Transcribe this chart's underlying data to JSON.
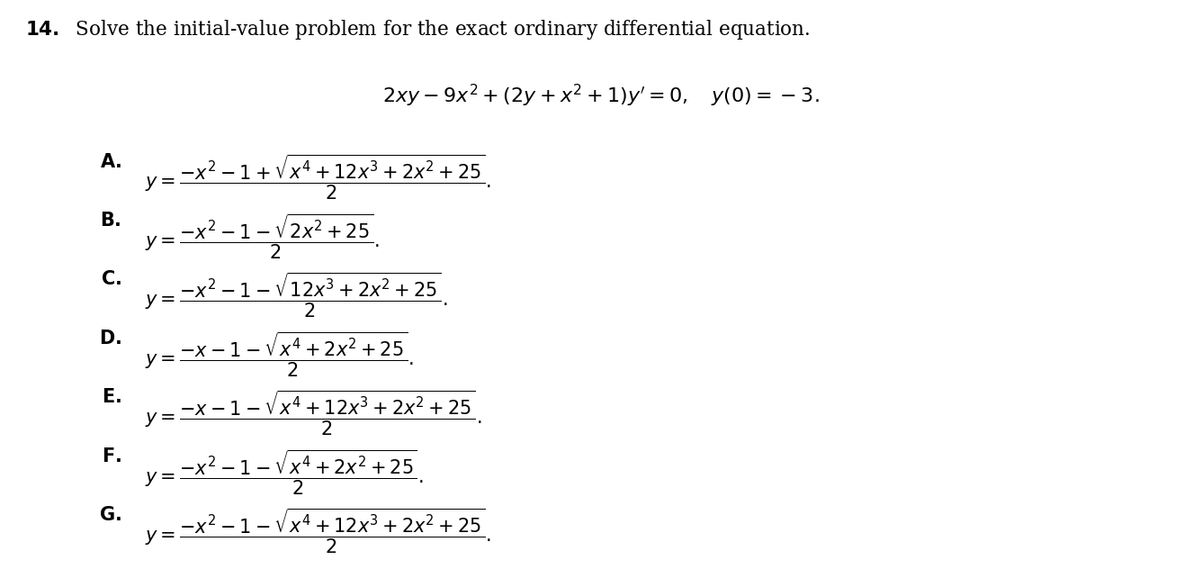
{
  "background_color": "#ffffff",
  "title_number": "14.",
  "title_text": "Solve the initial-value problem for the exact ordinary differential equation.",
  "equation": "2xy - 9x^{2} + (2y + x^{2} + 1)y' = 0, \\quad y(0) = -3.",
  "choices": [
    {
      "label": "A.",
      "formula": "y = \\dfrac{-x^2-1+\\sqrt{x^4+12x^3+2x^2+25}}{2}."
    },
    {
      "label": "B.",
      "formula": "y = \\dfrac{-x^2-1-\\sqrt{2x^2+25}}{2}."
    },
    {
      "label": "C.",
      "formula": "y = \\dfrac{-x^2-1-\\sqrt{12x^3+2x^2+25}}{2}."
    },
    {
      "label": "D.",
      "formula": "y = \\dfrac{-x-1-\\sqrt{x^4+2x^2+25}}{2}."
    },
    {
      "label": "E.",
      "formula": "y = \\dfrac{-x-1-\\sqrt{x^4+12x^3+2x^2+25}}{2}."
    },
    {
      "label": "F.",
      "formula": "y = \\dfrac{-x^2-1-\\sqrt{x^4+2x^2+25}}{2}."
    },
    {
      "label": "G.",
      "formula": "y = \\dfrac{-x^2-1-\\sqrt{x^4+12x^3+2x^2+25}}{2}."
    }
  ],
  "figsize": [
    13.36,
    6.32
  ],
  "dpi": 100
}
